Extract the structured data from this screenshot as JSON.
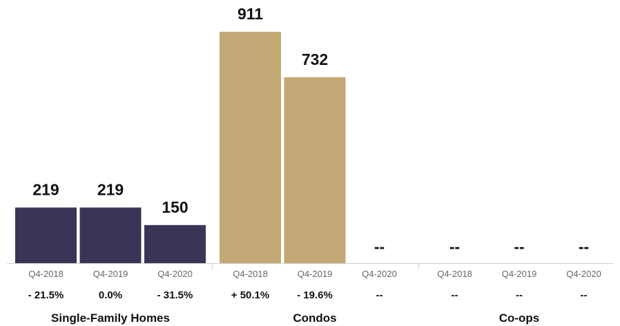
{
  "chart_data": {
    "type": "bar",
    "groups": [
      {
        "name": "Single-Family Homes",
        "color": "#393556",
        "bars": [
          {
            "period": "Q4-2018",
            "value": 219,
            "label": "219",
            "change": "- 21.5%"
          },
          {
            "period": "Q4-2019",
            "value": 219,
            "label": "219",
            "change": "0.0%"
          },
          {
            "period": "Q4-2020",
            "value": 150,
            "label": "150",
            "change": "- 31.5%"
          }
        ]
      },
      {
        "name": "Condos",
        "color": "#c1a875",
        "bars": [
          {
            "period": "Q4-2018",
            "value": 911,
            "label": "911",
            "change": "+ 50.1%"
          },
          {
            "period": "Q4-2019",
            "value": 732,
            "label": "732",
            "change": "- 19.6%"
          },
          {
            "period": "Q4-2020",
            "value": null,
            "label": "--",
            "change": "--"
          }
        ]
      },
      {
        "name": "Co-ops",
        "color": "#c1a875",
        "bars": [
          {
            "period": "Q4-2018",
            "value": null,
            "label": "--",
            "change": "--"
          },
          {
            "period": "Q4-2019",
            "value": null,
            "label": "--",
            "change": "--"
          },
          {
            "period": "Q4-2020",
            "value": null,
            "label": "--",
            "change": "--"
          }
        ]
      }
    ],
    "ylim": [
      0,
      911
    ],
    "grid": false,
    "legend": "none"
  }
}
